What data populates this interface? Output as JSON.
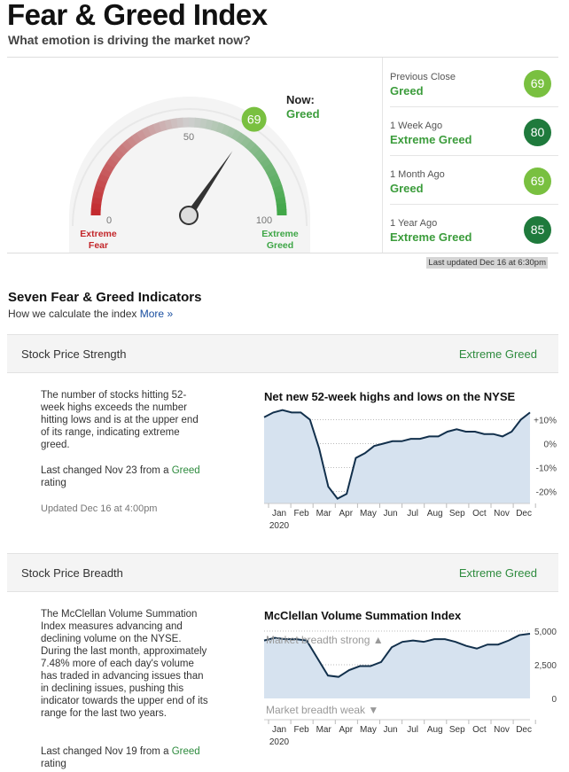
{
  "header": {
    "title": "Fear & Greed Index",
    "subtitle": "What emotion is driving the market now?"
  },
  "gauge": {
    "value": 69,
    "tick_0": "0",
    "tick_50": "50",
    "tick_100": "100",
    "left_label_1": "Extreme",
    "left_label_2": "Fear",
    "right_label_1": "Extreme",
    "right_label_2": "Greed",
    "now_label": "Now:",
    "now_value": "Greed",
    "colors": {
      "fear": "#c3272b",
      "greed": "#3ea646",
      "neutral": "#cfcfcf"
    }
  },
  "history": [
    {
      "label": "Previous Close",
      "rating": "Greed",
      "value": "69",
      "style": "greed"
    },
    {
      "label": "1 Week Ago",
      "rating": "Extreme Greed",
      "value": "80",
      "style": "xgreed"
    },
    {
      "label": "1 Month Ago",
      "rating": "Greed",
      "value": "69",
      "style": "greed"
    },
    {
      "label": "1 Year Ago",
      "rating": "Extreme Greed",
      "value": "85",
      "style": "xgreed"
    }
  ],
  "last_updated": "Last updated Dec 16 at 6:30pm",
  "indicators_section": {
    "title": "Seven Fear & Greed Indicators",
    "subtitle": "How we calculate the index",
    "more_link": "More »"
  },
  "indicators": [
    {
      "name": "Stock Price Strength",
      "rating": "Extreme Greed",
      "description": "The number of stocks hitting 52-week highs exceeds the number hitting lows and is at the upper end of its range, indicating extreme greed.",
      "last_changed_prefix": "Last changed Nov 23 from a",
      "last_changed_rating": "Greed",
      "last_changed_suffix": "rating",
      "updated": "Updated Dec 16 at 4:00pm"
    },
    {
      "name": "Stock Price Breadth",
      "rating": "Extreme Greed",
      "description": "The McClellan Volume Summation Index measures advancing and declining volume on the NYSE. During the last month, approximately 7.48% more of each day's volume has traded in advancing issues than in declining issues, pushing this indicator towards the upper end of its range for the last two years.",
      "last_changed_prefix": "Last changed Nov 19 from a",
      "last_changed_rating": "Greed",
      "last_changed_suffix": "rating"
    }
  ],
  "chart_data": [
    {
      "type": "area",
      "title": "Net new 52-week highs and lows on the NYSE",
      "x": [
        "Dec",
        "Jan",
        "Jan",
        "Feb",
        "Feb",
        "Mar",
        "Mar",
        "Mar",
        "Mar",
        "Mar",
        "Mar",
        "Apr",
        "Apr",
        "Apr",
        "May",
        "May",
        "Jun",
        "Jun",
        "Jul",
        "Jul",
        "Aug",
        "Aug",
        "Sep",
        "Sep",
        "Oct",
        "Oct",
        "Nov",
        "Nov",
        "Dec",
        "Dec"
      ],
      "values": [
        11,
        13,
        14,
        13,
        13,
        10,
        -2,
        -18,
        -23,
        -21,
        -6,
        -4,
        -1,
        0,
        1,
        1,
        2,
        2,
        3,
        3,
        5,
        6,
        5,
        5,
        4,
        4,
        3,
        5,
        10,
        13
      ],
      "x_ticks": [
        "Jan",
        "Feb",
        "Mar",
        "Apr",
        "May",
        "Jun",
        "Jul",
        "Aug",
        "Sep",
        "Oct",
        "Nov",
        "Dec"
      ],
      "year_label": "2020",
      "y_ticks": [
        "+10%",
        "0%",
        "-10%",
        "-20%"
      ],
      "ylim": [
        -25,
        15
      ],
      "colors": {
        "fill": "#d6e2ef",
        "line": "#12304c"
      }
    },
    {
      "type": "area",
      "title": "McClellan Volume Summation Index",
      "x": [
        "Dec",
        "Jan",
        "Jan",
        "Feb",
        "Feb",
        "Mar",
        "Mar",
        "Mar",
        "Apr",
        "Apr",
        "May",
        "May",
        "Jun",
        "Jun",
        "Jul",
        "Jul",
        "Aug",
        "Aug",
        "Sep",
        "Sep",
        "Oct",
        "Oct",
        "Nov",
        "Nov",
        "Dec",
        "Dec"
      ],
      "values": [
        4300,
        4500,
        4400,
        4400,
        4300,
        3000,
        1700,
        1600,
        2100,
        2400,
        2400,
        2700,
        3800,
        4200,
        4300,
        4200,
        4400,
        4400,
        4200,
        3900,
        3700,
        4000,
        4000,
        4300,
        4700,
        4800
      ],
      "x_ticks": [
        "Jan",
        "Feb",
        "Mar",
        "Apr",
        "May",
        "Jun",
        "Jul",
        "Aug",
        "Sep",
        "Oct",
        "Nov",
        "Dec"
      ],
      "year_label": "2020",
      "y_ticks": [
        "5,000",
        "2,500",
        "0"
      ],
      "ylim": [
        0,
        5000
      ],
      "top_note": "Market breadth strong",
      "bottom_note": "Market breadth weak",
      "colors": {
        "fill": "#d6e2ef",
        "line": "#12304c"
      }
    }
  ]
}
